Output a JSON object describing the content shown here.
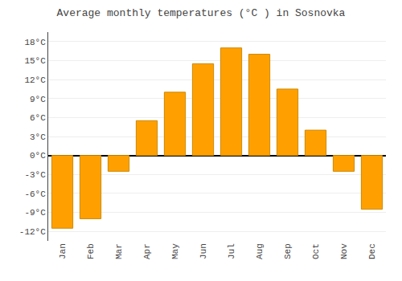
{
  "chart_data": {
    "type": "bar",
    "title": "Average monthly temperatures (°C ) in Sosnovka",
    "categories": [
      "Jan",
      "Feb",
      "Mar",
      "Apr",
      "May",
      "Jun",
      "Jul",
      "Aug",
      "Sep",
      "Oct",
      "Nov",
      "Dec"
    ],
    "values": [
      -11.5,
      -10.0,
      -2.5,
      5.5,
      10.0,
      14.5,
      17.0,
      16.0,
      10.5,
      4.0,
      -2.5,
      -8.5
    ],
    "color": "#FFA000",
    "ylim": [
      -13.5,
      19.5
    ],
    "yticks": [
      {
        "value": -12,
        "label": "-12°C"
      },
      {
        "value": -9,
        "label": "-9°C"
      },
      {
        "value": -6,
        "label": "-6°C"
      },
      {
        "value": -3,
        "label": "-3°C"
      },
      {
        "value": 0,
        "label": "0°C"
      },
      {
        "value": 3,
        "label": "3°C"
      },
      {
        "value": 6,
        "label": "6°C"
      },
      {
        "value": 9,
        "label": "9°C"
      },
      {
        "value": 12,
        "label": "12°C"
      },
      {
        "value": 15,
        "label": "15°C"
      },
      {
        "value": 18,
        "label": "18°C"
      }
    ],
    "grid": true
  }
}
